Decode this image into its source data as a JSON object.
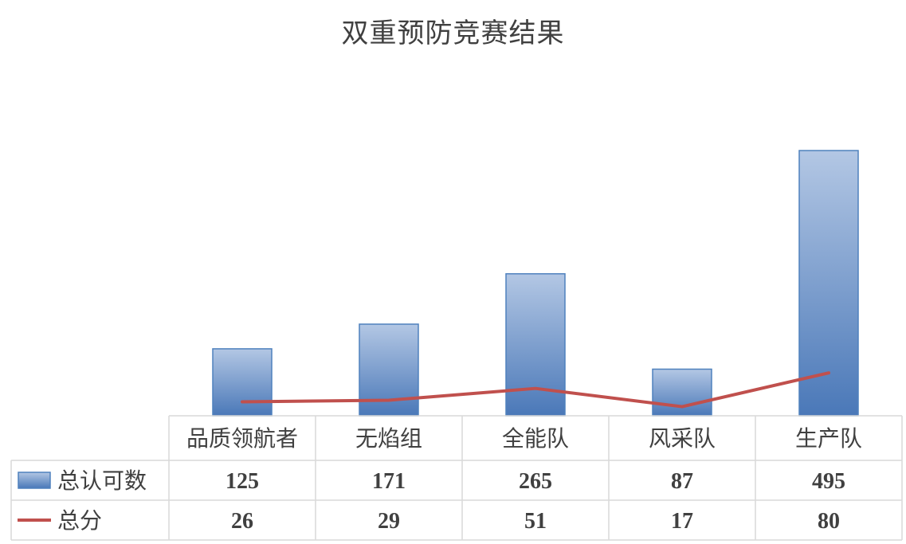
{
  "chart_data": {
    "type": "bar",
    "title": "双重预防竞赛结果",
    "categories": [
      "品质领航者",
      "无焰组",
      "全能队",
      "风采队",
      "生产队"
    ],
    "series": [
      {
        "name": "总认可数",
        "kind": "bar",
        "values": [
          125,
          171,
          265,
          87,
          495
        ],
        "color": "#4f81bd"
      },
      {
        "name": "总分",
        "kind": "line",
        "values": [
          26,
          29,
          51,
          17,
          80
        ],
        "color": "#c0504d"
      }
    ],
    "legend": "data-table",
    "grid": false
  }
}
